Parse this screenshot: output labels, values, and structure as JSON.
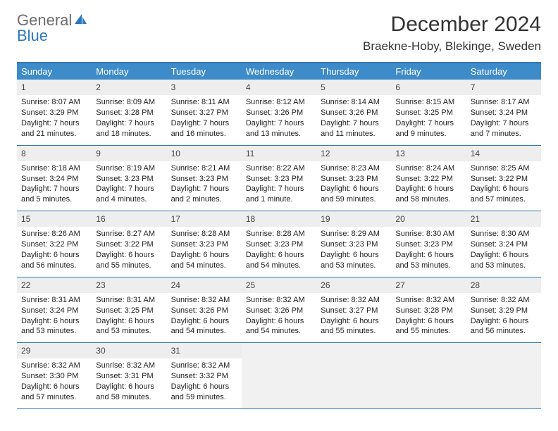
{
  "brand": {
    "word1": "General",
    "word2": "Blue"
  },
  "title": "December 2024",
  "location": "Braekne-Hoby, Blekinge, Sweden",
  "colors": {
    "header_bg": "#3d8bc9",
    "rule": "#2f7ab8",
    "date_bg": "#eeeeee",
    "logo_gray": "#6c6c6c",
    "logo_blue": "#2878bd"
  },
  "day_names": [
    "Sunday",
    "Monday",
    "Tuesday",
    "Wednesday",
    "Thursday",
    "Friday",
    "Saturday"
  ],
  "days": [
    {
      "n": "1",
      "sr": "Sunrise: 8:07 AM",
      "ss": "Sunset: 3:29 PM",
      "dl": "Daylight: 7 hours and 21 minutes."
    },
    {
      "n": "2",
      "sr": "Sunrise: 8:09 AM",
      "ss": "Sunset: 3:28 PM",
      "dl": "Daylight: 7 hours and 18 minutes."
    },
    {
      "n": "3",
      "sr": "Sunrise: 8:11 AM",
      "ss": "Sunset: 3:27 PM",
      "dl": "Daylight: 7 hours and 16 minutes."
    },
    {
      "n": "4",
      "sr": "Sunrise: 8:12 AM",
      "ss": "Sunset: 3:26 PM",
      "dl": "Daylight: 7 hours and 13 minutes."
    },
    {
      "n": "5",
      "sr": "Sunrise: 8:14 AM",
      "ss": "Sunset: 3:26 PM",
      "dl": "Daylight: 7 hours and 11 minutes."
    },
    {
      "n": "6",
      "sr": "Sunrise: 8:15 AM",
      "ss": "Sunset: 3:25 PM",
      "dl": "Daylight: 7 hours and 9 minutes."
    },
    {
      "n": "7",
      "sr": "Sunrise: 8:17 AM",
      "ss": "Sunset: 3:24 PM",
      "dl": "Daylight: 7 hours and 7 minutes."
    },
    {
      "n": "8",
      "sr": "Sunrise: 8:18 AM",
      "ss": "Sunset: 3:24 PM",
      "dl": "Daylight: 7 hours and 5 minutes."
    },
    {
      "n": "9",
      "sr": "Sunrise: 8:19 AM",
      "ss": "Sunset: 3:23 PM",
      "dl": "Daylight: 7 hours and 4 minutes."
    },
    {
      "n": "10",
      "sr": "Sunrise: 8:21 AM",
      "ss": "Sunset: 3:23 PM",
      "dl": "Daylight: 7 hours and 2 minutes."
    },
    {
      "n": "11",
      "sr": "Sunrise: 8:22 AM",
      "ss": "Sunset: 3:23 PM",
      "dl": "Daylight: 7 hours and 1 minute."
    },
    {
      "n": "12",
      "sr": "Sunrise: 8:23 AM",
      "ss": "Sunset: 3:23 PM",
      "dl": "Daylight: 6 hours and 59 minutes."
    },
    {
      "n": "13",
      "sr": "Sunrise: 8:24 AM",
      "ss": "Sunset: 3:22 PM",
      "dl": "Daylight: 6 hours and 58 minutes."
    },
    {
      "n": "14",
      "sr": "Sunrise: 8:25 AM",
      "ss": "Sunset: 3:22 PM",
      "dl": "Daylight: 6 hours and 57 minutes."
    },
    {
      "n": "15",
      "sr": "Sunrise: 8:26 AM",
      "ss": "Sunset: 3:22 PM",
      "dl": "Daylight: 6 hours and 56 minutes."
    },
    {
      "n": "16",
      "sr": "Sunrise: 8:27 AM",
      "ss": "Sunset: 3:22 PM",
      "dl": "Daylight: 6 hours and 55 minutes."
    },
    {
      "n": "17",
      "sr": "Sunrise: 8:28 AM",
      "ss": "Sunset: 3:23 PM",
      "dl": "Daylight: 6 hours and 54 minutes."
    },
    {
      "n": "18",
      "sr": "Sunrise: 8:28 AM",
      "ss": "Sunset: 3:23 PM",
      "dl": "Daylight: 6 hours and 54 minutes."
    },
    {
      "n": "19",
      "sr": "Sunrise: 8:29 AM",
      "ss": "Sunset: 3:23 PM",
      "dl": "Daylight: 6 hours and 53 minutes."
    },
    {
      "n": "20",
      "sr": "Sunrise: 8:30 AM",
      "ss": "Sunset: 3:23 PM",
      "dl": "Daylight: 6 hours and 53 minutes."
    },
    {
      "n": "21",
      "sr": "Sunrise: 8:30 AM",
      "ss": "Sunset: 3:24 PM",
      "dl": "Daylight: 6 hours and 53 minutes."
    },
    {
      "n": "22",
      "sr": "Sunrise: 8:31 AM",
      "ss": "Sunset: 3:24 PM",
      "dl": "Daylight: 6 hours and 53 minutes."
    },
    {
      "n": "23",
      "sr": "Sunrise: 8:31 AM",
      "ss": "Sunset: 3:25 PM",
      "dl": "Daylight: 6 hours and 53 minutes."
    },
    {
      "n": "24",
      "sr": "Sunrise: 8:32 AM",
      "ss": "Sunset: 3:26 PM",
      "dl": "Daylight: 6 hours and 54 minutes."
    },
    {
      "n": "25",
      "sr": "Sunrise: 8:32 AM",
      "ss": "Sunset: 3:26 PM",
      "dl": "Daylight: 6 hours and 54 minutes."
    },
    {
      "n": "26",
      "sr": "Sunrise: 8:32 AM",
      "ss": "Sunset: 3:27 PM",
      "dl": "Daylight: 6 hours and 55 minutes."
    },
    {
      "n": "27",
      "sr": "Sunrise: 8:32 AM",
      "ss": "Sunset: 3:28 PM",
      "dl": "Daylight: 6 hours and 55 minutes."
    },
    {
      "n": "28",
      "sr": "Sunrise: 8:32 AM",
      "ss": "Sunset: 3:29 PM",
      "dl": "Daylight: 6 hours and 56 minutes."
    },
    {
      "n": "29",
      "sr": "Sunrise: 8:32 AM",
      "ss": "Sunset: 3:30 PM",
      "dl": "Daylight: 6 hours and 57 minutes."
    },
    {
      "n": "30",
      "sr": "Sunrise: 8:32 AM",
      "ss": "Sunset: 3:31 PM",
      "dl": "Daylight: 6 hours and 58 minutes."
    },
    {
      "n": "31",
      "sr": "Sunrise: 8:32 AM",
      "ss": "Sunset: 3:32 PM",
      "dl": "Daylight: 6 hours and 59 minutes."
    }
  ]
}
